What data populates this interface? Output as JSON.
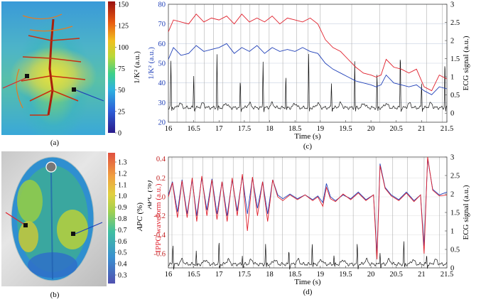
{
  "panel_a": {
    "label": "(a)",
    "colorbar": {
      "label": "1/K²",
      "unit": "(a.u.)",
      "ticks": [
        "150",
        "125",
        "100",
        "75",
        "50",
        "25",
        "0"
      ],
      "range": [
        0,
        150
      ]
    }
  },
  "panel_b": {
    "label": "(b)",
    "colorbar": {
      "label": "APC",
      "unit": "(%)",
      "ticks": [
        "1.3",
        "1.2",
        "1.1",
        "1.0",
        "0.9",
        "0.8",
        "0.7",
        "0.6",
        "0.5",
        "0.4",
        "0.3"
      ],
      "range": [
        0.25,
        1.35
      ]
    }
  },
  "chart_data": [
    {
      "id": "c",
      "type": "line",
      "caption": "(c)",
      "xlabel": "Time (s)",
      "ylabel_left": "1/K² (a.u.)",
      "ylabel_right": "ECG signal (a.u.)",
      "xlim": [
        16,
        21.5
      ],
      "ylim_left": [
        20,
        80
      ],
      "ylim_right": [
        -0.25,
        3
      ],
      "x_ticks": [
        "16",
        "16.5",
        "17",
        "17.5",
        "18",
        "18.5",
        "19",
        "19.5",
        "20",
        "20.5",
        "21",
        "21.5"
      ],
      "y_ticks_left": [
        "80",
        "70",
        "60",
        "50",
        "40",
        "30",
        "20"
      ],
      "y_ticks_right": [
        "3",
        "2.5",
        "2",
        "1.5",
        "1",
        "0.5",
        "0"
      ],
      "beats": [
        16.17,
        16.35,
        16.53,
        16.71,
        16.89,
        17.07,
        17.25,
        17.43,
        17.61,
        17.79,
        17.99,
        18.26,
        18.53,
        18.76,
        19.0,
        19.62,
        20.17,
        20.7,
        21.1,
        21.41
      ],
      "r_peaks": [
        16.05,
        16.5,
        16.96,
        17.42,
        17.87,
        18.32,
        18.77,
        19.22,
        19.68,
        20.12,
        20.58,
        21.0,
        21.46
      ],
      "series": [
        {
          "name": "red ROI 1/K²",
          "axis": "left",
          "color": "#e0202c",
          "x": [
            16.0,
            16.1,
            16.25,
            16.4,
            16.55,
            16.7,
            16.85,
            17.0,
            17.15,
            17.3,
            17.45,
            17.6,
            17.75,
            17.9,
            18.05,
            18.2,
            18.35,
            18.5,
            18.65,
            18.8,
            18.95,
            19.1,
            19.25,
            19.4,
            19.55,
            19.7,
            19.85,
            20.0,
            20.1,
            20.2,
            20.3,
            20.45,
            20.6,
            20.75,
            20.9,
            21.05,
            21.2,
            21.35,
            21.5
          ],
          "y": [
            66,
            72,
            71,
            70,
            75,
            71,
            73,
            72,
            74,
            70,
            75,
            71,
            73,
            71,
            74,
            70,
            73,
            72,
            71,
            73,
            70,
            62,
            58,
            56,
            52,
            48,
            45,
            44,
            43,
            44,
            52,
            48,
            47,
            45,
            47,
            38,
            36,
            44,
            42
          ]
        },
        {
          "name": "blue ROI 1/K²",
          "axis": "left",
          "color": "#2040b8",
          "x": [
            16.0,
            16.1,
            16.25,
            16.4,
            16.55,
            16.7,
            16.85,
            17.0,
            17.15,
            17.3,
            17.45,
            17.6,
            17.75,
            17.9,
            18.05,
            18.2,
            18.35,
            18.5,
            18.65,
            18.8,
            18.95,
            19.1,
            19.25,
            19.4,
            19.55,
            19.7,
            19.85,
            20.0,
            20.1,
            20.2,
            20.3,
            20.45,
            20.6,
            20.75,
            20.9,
            21.05,
            21.2,
            21.35,
            21.5
          ],
          "y": [
            52,
            58,
            54,
            55,
            59,
            56,
            57,
            58,
            60,
            55,
            58,
            56,
            59,
            55,
            58,
            56,
            57,
            56,
            58,
            56,
            55,
            50,
            47,
            45,
            43,
            41,
            40,
            39,
            38,
            39,
            44,
            40,
            39,
            38,
            39,
            36,
            34,
            38,
            37
          ]
        },
        {
          "name": "ECG",
          "axis": "right",
          "color": "#111111",
          "baseline": 0.15,
          "peak_heights": [
            1.3,
            0.9,
            1.5,
            0.7
          ]
        }
      ]
    },
    {
      "id": "d",
      "type": "line",
      "caption": "(d)",
      "xlabel": "Time (s)",
      "ylabel_left": "APC (%)",
      "ylabel_left_red": "IPPG waveform (a.u.)",
      "ylabel_right": "ECG signal (a.u.)",
      "xlim": [
        16,
        21.5
      ],
      "ylim_left": [
        -0.75,
        0.42
      ],
      "ylim_right": [
        0,
        3
      ],
      "x_ticks": [
        "16",
        "16.5",
        "17",
        "17.5",
        "18",
        "18.5",
        "19",
        "19.5",
        "20",
        "20.5",
        "21",
        "21.5"
      ],
      "y_ticks_left": [
        "0.4",
        "0.2",
        "0",
        "-0.2",
        "-0.4",
        "-0.6"
      ],
      "y_ticks_right": [
        "3",
        "2.5",
        "2",
        "1.5",
        "1",
        "0.5",
        "0"
      ],
      "beats": [
        16.07,
        16.28,
        16.48,
        16.68,
        16.88,
        17.08,
        17.28,
        17.48,
        17.68,
        17.88,
        18.08,
        18.25,
        18.52,
        18.78,
        19.05,
        19.38,
        19.65,
        20.1,
        20.43,
        20.72,
        21.05,
        21.35
      ],
      "r_peaks": [
        16.09,
        16.55,
        17.0,
        17.46,
        17.92,
        18.38,
        18.84,
        19.27,
        19.73,
        20.18,
        20.65,
        21.1
      ],
      "series": [
        {
          "name": "blue waveform",
          "axis": "left",
          "color": "#2040b8",
          "x": [
            16.0,
            16.08,
            16.18,
            16.27,
            16.37,
            16.47,
            16.56,
            16.66,
            16.76,
            16.86,
            16.96,
            17.06,
            17.16,
            17.26,
            17.36,
            17.46,
            17.56,
            17.66,
            17.76,
            17.86,
            17.96,
            18.06,
            18.16,
            18.26,
            18.4,
            18.55,
            18.7,
            18.85,
            18.95,
            19.05,
            19.12,
            19.2,
            19.3,
            19.45,
            19.6,
            19.75,
            19.9,
            20.05,
            20.12,
            20.18,
            20.28,
            20.4,
            20.55,
            20.7,
            20.85,
            20.98,
            21.05,
            21.12,
            21.22,
            21.35,
            21.5
          ],
          "y": [
            0.02,
            0.16,
            -0.16,
            0.18,
            -0.18,
            0.18,
            -0.2,
            0.2,
            -0.14,
            0.19,
            -0.18,
            0.16,
            -0.2,
            0.18,
            -0.15,
            0.22,
            -0.18,
            0.2,
            -0.12,
            0.16,
            -0.18,
            0.18,
            0.02,
            -0.02,
            0.03,
            -0.02,
            0.02,
            -0.03,
            0.01,
            -0.06,
            0.14,
            0.0,
            -0.04,
            0.02,
            -0.02,
            0.05,
            -0.03,
            0.02,
            -0.6,
            0.35,
            0.1,
            0.02,
            -0.03,
            0.05,
            -0.04,
            0.02,
            -0.52,
            0.4,
            0.08,
            0.02,
            0.05
          ]
        },
        {
          "name": "red waveform",
          "axis": "left",
          "color": "#e0202c",
          "x": [
            16.0,
            16.08,
            16.18,
            16.27,
            16.37,
            16.47,
            16.56,
            16.66,
            16.76,
            16.86,
            16.96,
            17.06,
            17.16,
            17.26,
            17.36,
            17.46,
            17.56,
            17.66,
            17.76,
            17.86,
            17.96,
            18.06,
            18.16,
            18.26,
            18.4,
            18.55,
            18.7,
            18.85,
            18.95,
            19.05,
            19.12,
            19.2,
            19.3,
            19.45,
            19.6,
            19.75,
            19.9,
            20.05,
            20.12,
            20.18,
            20.28,
            20.4,
            20.55,
            20.7,
            20.85,
            20.98,
            21.05,
            21.12,
            21.22,
            21.35,
            21.5
          ],
          "y": [
            0.0,
            0.15,
            -0.22,
            0.17,
            -0.22,
            0.2,
            -0.26,
            0.22,
            -0.2,
            0.18,
            -0.24,
            0.16,
            -0.26,
            0.2,
            -0.2,
            0.24,
            -0.36,
            0.21,
            -0.2,
            0.16,
            -0.26,
            0.18,
            0.0,
            -0.04,
            0.02,
            -0.03,
            0.02,
            -0.04,
            0.0,
            -0.1,
            0.1,
            -0.02,
            -0.05,
            0.03,
            -0.03,
            0.04,
            -0.04,
            0.02,
            -0.66,
            0.33,
            0.09,
            0.01,
            -0.04,
            0.04,
            -0.05,
            0.02,
            -0.6,
            0.42,
            0.07,
            0.01,
            0.02
          ]
        },
        {
          "name": "ECG",
          "axis": "right",
          "color": "#111111",
          "baseline": 0.1,
          "peak_heights": [
            0.55,
            0.35,
            0.6,
            0.25
          ]
        }
      ]
    }
  ]
}
